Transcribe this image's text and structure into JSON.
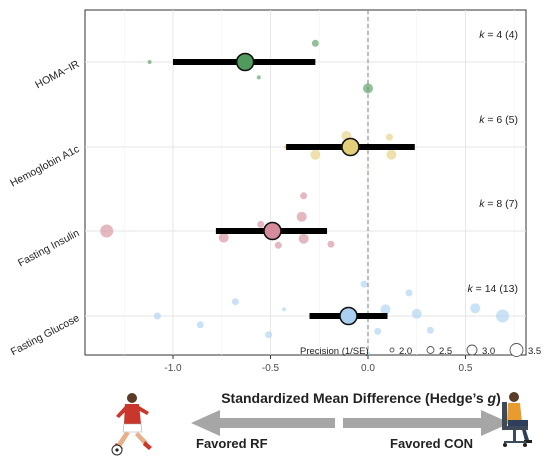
{
  "chart_data": {
    "type": "scatter",
    "subtype": "orchard-forest-plot",
    "xlabel_main": "Standardized Mean Difference (Hedge’s ",
    "xlabel_italic": "g",
    "xlabel_end": ")",
    "xlim": [
      -1.4,
      0.7
    ],
    "xticks": [
      -1.0,
      -0.5,
      0.0,
      0.5
    ],
    "xtick_labels": [
      "-1.0",
      "-0.5",
      "0.0",
      "0.5"
    ],
    "reference_line_x": 0,
    "categories": [
      "HOMA−IR",
      "Hemoglobin A1c",
      "Fasting Insulin",
      "Fasting Glucose"
    ],
    "series": [
      {
        "name": "HOMA−IR",
        "k_prefix": "k",
        "k_text": " = 4 (4)",
        "color": "#4f9a5c",
        "estimate": -0.63,
        "ci": [
          -1.0,
          -0.27
        ],
        "studies": [
          {
            "g": -1.12,
            "jitter": 0.0,
            "precision": 2.0
          },
          {
            "g": -0.27,
            "jitter": 0.17,
            "precision": 2.5
          },
          {
            "g": -0.56,
            "jitter": -0.14,
            "precision": 2.0
          },
          {
            "g": 0.0,
            "jitter": -0.24,
            "precision": 3.0
          }
        ]
      },
      {
        "name": "Hemoglobin A1c",
        "k_prefix": "k",
        "k_text": " = 6 (5)",
        "color": "#e3cf7a",
        "estimate": -0.09,
        "ci": [
          -0.42,
          0.24
        ],
        "studies": [
          {
            "g": -0.11,
            "jitter": 0.1,
            "precision": 3.0
          },
          {
            "g": 0.11,
            "jitter": 0.09,
            "precision": 2.5
          },
          {
            "g": 0.12,
            "jitter": -0.07,
            "precision": 3.0
          },
          {
            "g": -0.27,
            "jitter": -0.07,
            "precision": 3.0
          },
          {
            "g": -0.42,
            "jitter": 0.0,
            "precision": 2.0
          },
          {
            "g": 0.0,
            "jitter": -0.19,
            "precision": 1.8
          }
        ]
      },
      {
        "name": "Fasting Insulin",
        "k_prefix": "k",
        "k_text": " = 8 (7)",
        "color": "#d58b9b",
        "estimate": -0.49,
        "ci": [
          -0.78,
          -0.21
        ],
        "studies": [
          {
            "g": -1.34,
            "jitter": 0.0,
            "precision": 3.5
          },
          {
            "g": -0.74,
            "jitter": -0.06,
            "precision": 3.0
          },
          {
            "g": -0.55,
            "jitter": 0.06,
            "precision": 2.5
          },
          {
            "g": -0.46,
            "jitter": -0.13,
            "precision": 2.5
          },
          {
            "g": -0.33,
            "jitter": 0.32,
            "precision": 2.5
          },
          {
            "g": -0.34,
            "jitter": 0.13,
            "precision": 3.0
          },
          {
            "g": -0.33,
            "jitter": -0.07,
            "precision": 3.0
          },
          {
            "g": -0.19,
            "jitter": -0.12,
            "precision": 2.5
          }
        ]
      },
      {
        "name": "Fasting Glucose",
        "k_prefix": "k",
        "k_text": " = 14 (13)",
        "color": "#a9d1ef",
        "estimate": -0.1,
        "ci": [
          -0.3,
          0.1
        ],
        "studies": [
          {
            "g": -1.08,
            "jitter": 0.0,
            "precision": 2.5
          },
          {
            "g": -0.86,
            "jitter": -0.08,
            "precision": 2.5
          },
          {
            "g": -0.68,
            "jitter": 0.13,
            "precision": 2.5
          },
          {
            "g": -0.51,
            "jitter": -0.17,
            "precision": 2.5
          },
          {
            "g": -0.43,
            "jitter": 0.06,
            "precision": 2.0
          },
          {
            "g": -0.02,
            "jitter": 0.29,
            "precision": 2.5
          },
          {
            "g": 0.09,
            "jitter": 0.06,
            "precision": 3.0
          },
          {
            "g": 0.05,
            "jitter": -0.14,
            "precision": 2.5
          },
          {
            "g": 0.21,
            "jitter": 0.21,
            "precision": 2.5
          },
          {
            "g": 0.32,
            "jitter": -0.13,
            "precision": 2.5
          },
          {
            "g": 0.25,
            "jitter": 0.02,
            "precision": 3.0
          },
          {
            "g": 0.55,
            "jitter": 0.07,
            "precision": 3.0
          },
          {
            "g": 0.69,
            "jitter": 0.0,
            "precision": 3.5
          },
          {
            "g": 0.0,
            "jitter": -0.34,
            "precision": 2.0
          }
        ]
      }
    ],
    "legend": {
      "title": "Precision (1/SE)",
      "entries": [
        {
          "label": "2.0",
          "precision": 2.0
        },
        {
          "label": "2.5",
          "precision": 2.5
        },
        {
          "label": "3.0",
          "precision": 3.0
        },
        {
          "label": "3.5",
          "precision": 3.5
        }
      ],
      "placement": "bottom-right"
    },
    "grid": true
  },
  "annotations": {
    "favored_left": "Favored RF",
    "favored_right": "Favored CON"
  },
  "colors": {
    "arrow": "#a6a6a6",
    "ci_bar": "#000000",
    "jersey": "#c9372c",
    "chair": "#3c4a5a",
    "shirt_right": "#e89b2e"
  },
  "icons": {
    "left_figure": "soccer-player-icon",
    "right_figure": "seated-person-icon"
  }
}
